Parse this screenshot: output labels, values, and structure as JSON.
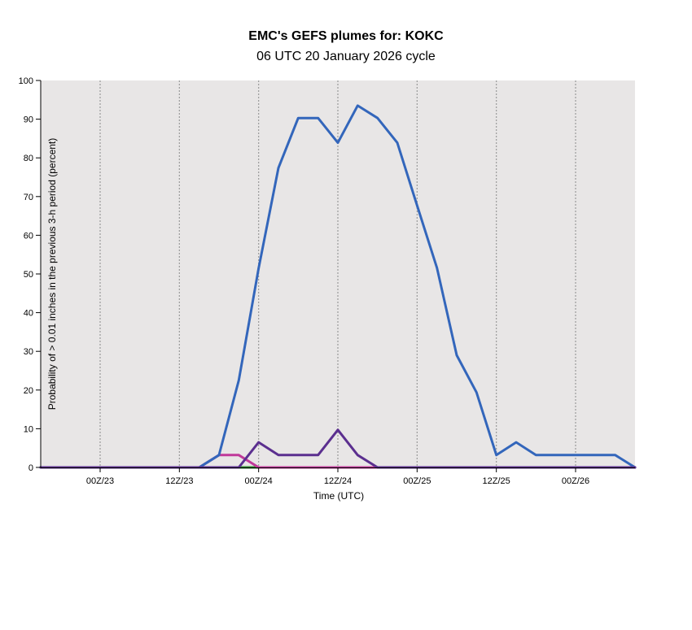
{
  "chart_data": {
    "type": "line",
    "title": "EMC's GEFS plumes for: KOKC",
    "subtitle": "06 UTC 20 January 2026 cycle",
    "xlabel": "Time (UTC)",
    "ylabel": "Probability of > 0.01 inches in the previous 3-h period (percent)",
    "ylim": [
      0,
      100
    ],
    "yticks": [
      0,
      10,
      20,
      30,
      40,
      50,
      60,
      70,
      80,
      90,
      100
    ],
    "xlim": [
      -9,
      81
    ],
    "xtick_positions": [
      0,
      12,
      24,
      36,
      48,
      60,
      72
    ],
    "xtick_labels": [
      "00Z/23",
      "12Z/23",
      "00Z/24",
      "12Z/24",
      "00Z/25",
      "12Z/25",
      "00Z/26"
    ],
    "grid": "x-dotted",
    "background": "#e8e6e6",
    "x": [
      -9,
      -6,
      -3,
      0,
      3,
      6,
      9,
      12,
      15,
      18,
      21,
      24,
      27,
      30,
      33,
      36,
      39,
      42,
      45,
      48,
      51,
      54,
      57,
      60,
      63,
      66,
      69,
      72,
      75,
      78,
      81
    ],
    "series": [
      {
        "color": "#2f8a2f",
        "values": [
          0,
          0,
          0,
          0,
          0,
          0,
          0,
          0,
          0,
          0,
          0,
          0,
          0,
          0,
          0,
          0,
          0,
          0,
          0,
          0,
          0,
          0,
          0,
          0,
          0,
          0,
          0,
          0,
          0,
          0,
          0
        ]
      },
      {
        "color": "#c0399a",
        "values": [
          0,
          0,
          0,
          0,
          0,
          0,
          0,
          0,
          0,
          3.2,
          3.2,
          0,
          0,
          0,
          0,
          0,
          0,
          0,
          0,
          0,
          0,
          0,
          0,
          0,
          0,
          0,
          0,
          0,
          0,
          0,
          0
        ]
      },
      {
        "color": "#3366bb",
        "values": [
          0,
          0,
          0,
          0,
          0,
          0,
          0,
          0,
          0,
          3.2,
          22.5,
          51.5,
          77.4,
          90.3,
          90.3,
          83.9,
          93.5,
          90.3,
          83.9,
          67.7,
          51.6,
          29,
          19.4,
          3.2,
          6.5,
          3.2,
          3.2,
          3.2,
          3.2,
          3.2,
          0
        ]
      },
      {
        "color": "#5b2f8f",
        "values": [
          0,
          0,
          0,
          0,
          0,
          0,
          0,
          0,
          0,
          0,
          0,
          6.5,
          3.2,
          3.2,
          3.2,
          9.7,
          3.2,
          0,
          0,
          0,
          0,
          0,
          0,
          0,
          0,
          0,
          0,
          0,
          0,
          0,
          0
        ]
      }
    ]
  }
}
